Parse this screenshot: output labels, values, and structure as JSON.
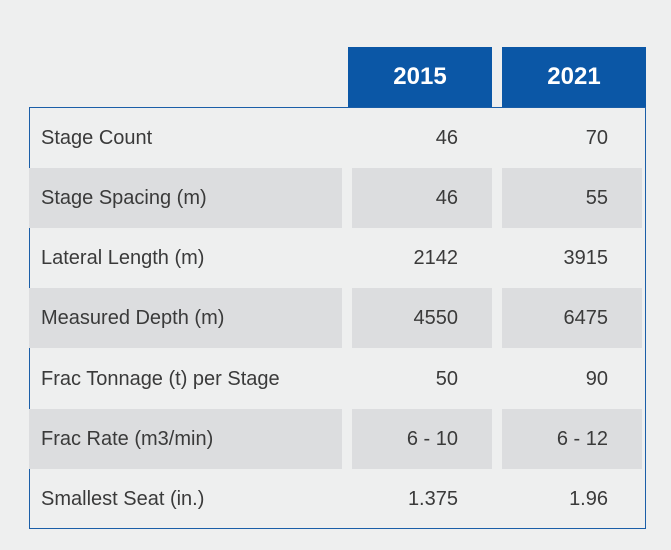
{
  "table": {
    "columns": [
      "2015",
      "2021"
    ],
    "rows": [
      {
        "label": "Stage Count",
        "v2015": "46",
        "v2021": "70"
      },
      {
        "label": "Stage Spacing (m)",
        "v2015": "46",
        "v2021": "55"
      },
      {
        "label": "Lateral Length (m)",
        "v2015": "2142",
        "v2021": "3915"
      },
      {
        "label": "Measured Depth (m)",
        "v2015": "4550",
        "v2021": "6475"
      },
      {
        "label": "Frac Tonnage (t) per Stage",
        "v2015": "50",
        "v2021": "90"
      },
      {
        "label": "Frac Rate (m3/min)",
        "v2015": "6 - 10",
        "v2021": "6 - 12"
      },
      {
        "label": "Smallest Seat (in.)",
        "v2015": "1.375",
        "v2021": "1.96"
      }
    ]
  },
  "colors": {
    "header_bg": "#0b57a6",
    "header_text": "#ffffff",
    "page_bg": "#eeefef",
    "shaded_row_bg": "#dcdddf",
    "border": "#1a5ea8",
    "text": "#3a3a3a"
  }
}
